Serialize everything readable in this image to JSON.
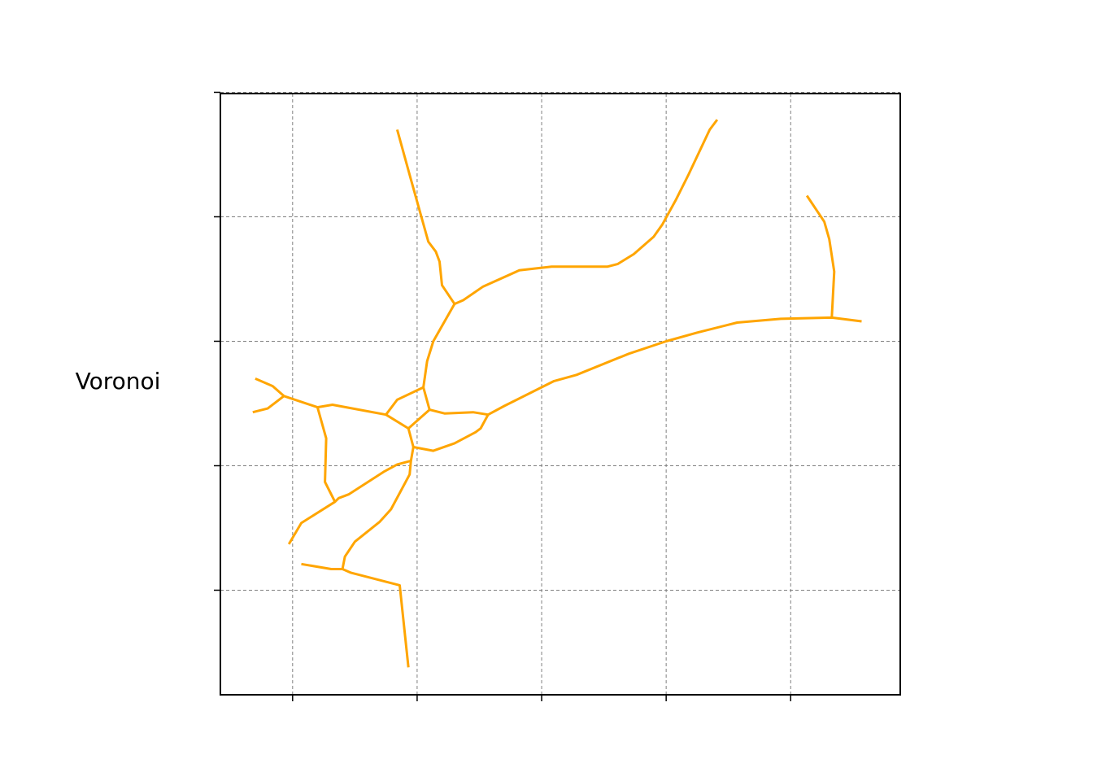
{
  "chart_data": {
    "type": "line",
    "title": "",
    "xlabel": "",
    "ylabel": "Voronoi",
    "xlim": [
      -0.58,
      4.88
    ],
    "ylim": [
      -0.84,
      3.99
    ],
    "x_ticks": [
      0,
      1,
      2,
      3,
      4
    ],
    "y_ticks": [
      0,
      1,
      2,
      3,
      4
    ],
    "tick_labels_visible": false,
    "grid": true,
    "line_color": "#ffa500",
    "grid_color": "#808080",
    "series": [
      {
        "points": [
          [
            -0.3,
            1.7
          ],
          [
            -0.16,
            1.64
          ],
          [
            -0.07,
            1.56
          ]
        ]
      },
      {
        "points": [
          [
            -0.32,
            1.43
          ],
          [
            -0.2,
            1.46
          ],
          [
            -0.07,
            1.56
          ]
        ]
      },
      {
        "points": [
          [
            -0.07,
            1.56
          ],
          [
            0.2,
            1.47
          ],
          [
            0.32,
            1.49
          ],
          [
            0.75,
            1.41
          ]
        ]
      },
      {
        "points": [
          [
            0.2,
            1.47
          ],
          [
            0.27,
            1.22
          ],
          [
            0.26,
            0.87
          ],
          [
            0.34,
            0.71
          ]
        ]
      },
      {
        "points": [
          [
            0.75,
            1.41
          ],
          [
            0.84,
            1.53
          ],
          [
            1.05,
            1.63
          ]
        ]
      },
      {
        "points": [
          [
            0.75,
            1.41
          ],
          [
            0.93,
            1.3
          ],
          [
            1.1,
            1.45
          ]
        ]
      },
      {
        "points": [
          [
            1.05,
            1.63
          ],
          [
            1.1,
            1.45
          ]
        ]
      },
      {
        "points": [
          [
            1.05,
            1.63
          ],
          [
            1.08,
            1.84
          ],
          [
            1.13,
            2.0
          ],
          [
            1.3,
            2.3
          ]
        ]
      },
      {
        "points": [
          [
            1.3,
            2.3
          ],
          [
            1.2,
            2.45
          ],
          [
            1.18,
            2.64
          ],
          [
            1.15,
            2.72
          ],
          [
            1.09,
            2.8
          ],
          [
            0.95,
            3.3
          ],
          [
            0.84,
            3.7
          ]
        ]
      },
      {
        "points": [
          [
            1.3,
            2.3
          ],
          [
            1.37,
            2.33
          ],
          [
            1.53,
            2.44
          ],
          [
            1.82,
            2.57
          ],
          [
            2.08,
            2.6
          ],
          [
            2.53,
            2.6
          ],
          [
            2.61,
            2.62
          ],
          [
            2.74,
            2.7
          ],
          [
            2.9,
            2.84
          ],
          [
            2.97,
            2.94
          ],
          [
            3.08,
            3.14
          ],
          [
            3.18,
            3.34
          ],
          [
            3.35,
            3.7
          ],
          [
            3.41,
            3.78
          ]
        ]
      },
      {
        "points": [
          [
            1.1,
            1.45
          ],
          [
            1.22,
            1.42
          ],
          [
            1.45,
            1.43
          ],
          [
            1.57,
            1.41
          ]
        ]
      },
      {
        "points": [
          [
            1.57,
            1.41
          ],
          [
            1.51,
            1.3
          ],
          [
            1.47,
            1.27
          ],
          [
            1.3,
            1.18
          ],
          [
            1.13,
            1.12
          ],
          [
            0.97,
            1.15
          ]
        ]
      },
      {
        "points": [
          [
            0.93,
            1.3
          ],
          [
            0.97,
            1.15
          ]
        ]
      },
      {
        "points": [
          [
            0.97,
            1.15
          ],
          [
            0.95,
            1.04
          ],
          [
            0.84,
            1.01
          ],
          [
            0.73,
            0.95
          ],
          [
            0.45,
            0.77
          ],
          [
            0.37,
            0.74
          ],
          [
            0.34,
            0.71
          ],
          [
            0.07,
            0.54
          ],
          [
            -0.03,
            0.37
          ]
        ]
      },
      {
        "points": [
          [
            0.95,
            1.04
          ],
          [
            0.94,
            0.93
          ],
          [
            0.79,
            0.65
          ],
          [
            0.7,
            0.55
          ],
          [
            0.5,
            0.39
          ],
          [
            0.42,
            0.27
          ],
          [
            0.4,
            0.17
          ]
        ]
      },
      {
        "points": [
          [
            0.07,
            0.21
          ],
          [
            0.31,
            0.17
          ],
          [
            0.4,
            0.17
          ],
          [
            0.47,
            0.14
          ],
          [
            0.86,
            0.04
          ],
          [
            0.93,
            -0.62
          ]
        ]
      },
      {
        "points": [
          [
            1.57,
            1.41
          ],
          [
            1.7,
            1.48
          ],
          [
            2.1,
            1.68
          ],
          [
            2.28,
            1.73
          ],
          [
            2.7,
            1.9
          ],
          [
            3.0,
            2.0
          ],
          [
            3.25,
            2.07
          ],
          [
            3.57,
            2.15
          ],
          [
            3.92,
            2.18
          ],
          [
            4.33,
            2.19
          ],
          [
            4.57,
            2.16
          ]
        ]
      },
      {
        "points": [
          [
            4.13,
            3.17
          ],
          [
            4.27,
            2.96
          ],
          [
            4.31,
            2.82
          ],
          [
            4.35,
            2.56
          ],
          [
            4.33,
            2.19
          ]
        ]
      }
    ]
  }
}
